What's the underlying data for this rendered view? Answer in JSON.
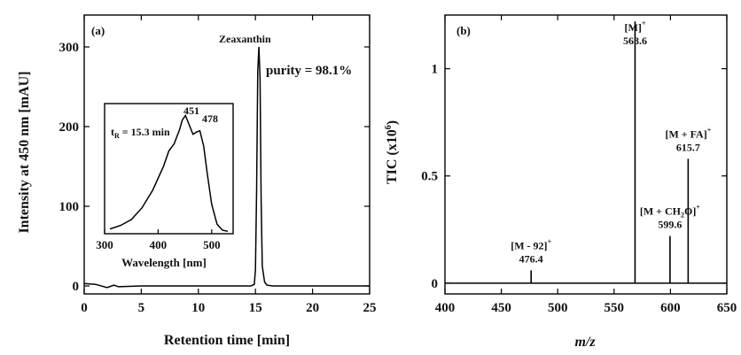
{
  "chart_data": [
    {
      "type": "line",
      "panel_label": "(a)",
      "xlabel": "Retention time [min]",
      "ylabel": "Intensity at 450 nm [mAU]",
      "xlim": [
        0,
        25
      ],
      "ylim": [
        -10,
        340
      ],
      "x_ticks": [
        0,
        5,
        10,
        15,
        20,
        25
      ],
      "y_ticks": [
        0,
        100,
        200,
        300
      ],
      "grid": false,
      "series": [
        {
          "x": [
            0,
            1,
            2,
            2.6,
            3,
            5,
            8,
            10,
            12,
            13,
            14,
            14.6,
            14.9,
            15.0,
            15.1,
            15.2,
            15.3,
            15.4,
            15.5,
            15.6,
            15.8,
            16.0,
            16.5,
            18,
            20,
            22,
            25
          ],
          "y": [
            3,
            2,
            -2,
            1,
            -1,
            0,
            0,
            0,
            0,
            0,
            0,
            0,
            2,
            20,
            120,
            270,
            300,
            260,
            110,
            25,
            5,
            1,
            0,
            0,
            0,
            0,
            0
          ]
        }
      ],
      "annotations": [
        {
          "text": "Zeaxanthin",
          "x": 15.3,
          "y": 300
        },
        {
          "text": "purity = 98.1%",
          "x": 16.3,
          "y": 265
        }
      ],
      "inset": {
        "type": "line",
        "xlabel": "Wavelength [nm]",
        "xlim": [
          300,
          540
        ],
        "ylim": [
          0,
          1.1
        ],
        "x_ticks": [
          300,
          400,
          500
        ],
        "annotation": "t",
        "annotation_sub": "R",
        "annotation_rest": " = 15.3 min",
        "peak_labels": [
          {
            "text": "451",
            "x": 451,
            "y": 1.0
          },
          {
            "text": "478",
            "x": 478,
            "y": 0.87
          }
        ],
        "series": [
          {
            "x": [
              310,
              330,
              350,
              370,
              390,
              410,
              420,
              430,
              440,
              445,
              451,
              458,
              465,
              472,
              478,
              485,
              492,
              500,
              510,
              520,
              530
            ],
            "y": [
              0.04,
              0.07,
              0.12,
              0.22,
              0.37,
              0.57,
              0.7,
              0.76,
              0.88,
              0.96,
              1.0,
              0.92,
              0.84,
              0.86,
              0.87,
              0.74,
              0.5,
              0.25,
              0.08,
              0.03,
              0.02
            ]
          }
        ]
      }
    },
    {
      "type": "bar",
      "panel_label": "(b)",
      "xlabel": "m/z",
      "ylabel": "TIC (x10",
      "ylabel_sup": "6",
      "ylabel_end": ")",
      "xlim": [
        400,
        650
      ],
      "ylim": [
        -0.05,
        1.25
      ],
      "x_ticks": [
        400,
        450,
        500,
        550,
        600,
        650
      ],
      "y_ticks": [
        0,
        0.5,
        1
      ],
      "y_tick_labels": [
        "0",
        "0.5",
        "1"
      ],
      "grid": false,
      "peaks": [
        {
          "x": 476.4,
          "y": 0.06,
          "label": "[M - 92]",
          "sup": "+",
          "value": "476.4"
        },
        {
          "x": 568.6,
          "y": 1.22,
          "label": "[M]",
          "sup": "+",
          "value": "568.6"
        },
        {
          "x": 599.6,
          "y": 0.22,
          "label": "[M + CH",
          "sub": "2",
          "label_end": "O]",
          "sup": "+",
          "value": "599.6"
        },
        {
          "x": 615.7,
          "y": 0.58,
          "label": "[M + FA]",
          "sup": "+",
          "value": "615.7"
        }
      ]
    }
  ]
}
